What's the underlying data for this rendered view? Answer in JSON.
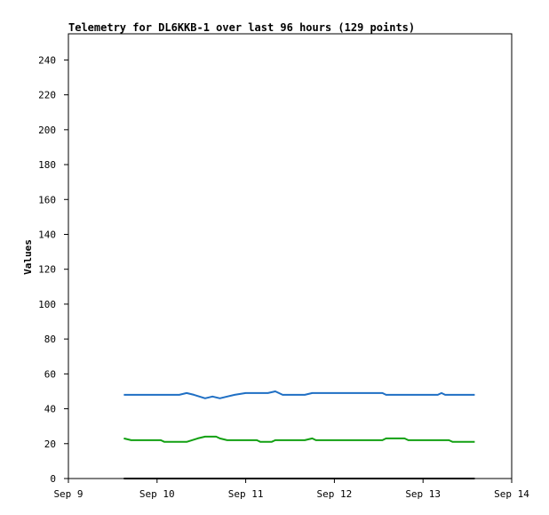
{
  "chart_data": {
    "type": "line",
    "title": "Telemetry for DL6KKB-1 over last 96 hours (129 points)",
    "xlabel": "",
    "ylabel": "Values",
    "x_ticks": [
      "Sep 9",
      "Sep 10",
      "Sep 11",
      "Sep 12",
      "Sep 13",
      "Sep 14"
    ],
    "xlim": [
      "2015-09-09T00:00",
      "2015-09-14T00:00"
    ],
    "y_ticks": [
      0,
      20,
      40,
      60,
      80,
      100,
      120,
      140,
      160,
      180,
      200,
      220,
      240
    ],
    "ylim": [
      0,
      255
    ],
    "grid": false,
    "series": [
      {
        "color": "#1f6fc4",
        "points": [
          [
            "2015-09-09T15:00",
            48
          ],
          [
            "2015-09-10T00:00",
            48
          ],
          [
            "2015-09-10T06:00",
            48
          ],
          [
            "2015-09-10T08:00",
            49
          ],
          [
            "2015-09-10T10:00",
            48
          ],
          [
            "2015-09-10T13:00",
            46
          ],
          [
            "2015-09-10T15:00",
            47
          ],
          [
            "2015-09-10T17:00",
            46
          ],
          [
            "2015-09-10T19:00",
            47
          ],
          [
            "2015-09-10T21:00",
            48
          ],
          [
            "2015-09-11T00:00",
            49
          ],
          [
            "2015-09-11T06:00",
            49
          ],
          [
            "2015-09-11T08:00",
            50
          ],
          [
            "2015-09-11T10:00",
            48
          ],
          [
            "2015-09-11T16:00",
            48
          ],
          [
            "2015-09-11T18:00",
            49
          ],
          [
            "2015-09-12T00:00",
            49
          ],
          [
            "2015-09-12T13:00",
            49
          ],
          [
            "2015-09-12T14:00",
            48
          ],
          [
            "2015-09-13T00:00",
            48
          ],
          [
            "2015-09-13T04:00",
            48
          ],
          [
            "2015-09-13T05:00",
            49
          ],
          [
            "2015-09-13T06:00",
            48
          ],
          [
            "2015-09-13T14:00",
            48
          ]
        ]
      },
      {
        "color": "#12a012",
        "points": [
          [
            "2015-09-09T15:00",
            23
          ],
          [
            "2015-09-09T17:00",
            22
          ],
          [
            "2015-09-10T01:00",
            22
          ],
          [
            "2015-09-10T02:00",
            21
          ],
          [
            "2015-09-10T08:00",
            21
          ],
          [
            "2015-09-10T11:00",
            23
          ],
          [
            "2015-09-10T13:00",
            24
          ],
          [
            "2015-09-10T16:00",
            24
          ],
          [
            "2015-09-10T17:00",
            23
          ],
          [
            "2015-09-10T19:00",
            22
          ],
          [
            "2015-09-11T03:00",
            22
          ],
          [
            "2015-09-11T04:00",
            21
          ],
          [
            "2015-09-11T07:00",
            21
          ],
          [
            "2015-09-11T08:00",
            22
          ],
          [
            "2015-09-11T16:00",
            22
          ],
          [
            "2015-09-11T18:00",
            23
          ],
          [
            "2015-09-11T19:00",
            22
          ],
          [
            "2015-09-12T13:00",
            22
          ],
          [
            "2015-09-12T14:00",
            23
          ],
          [
            "2015-09-12T19:00",
            23
          ],
          [
            "2015-09-12T20:00",
            22
          ],
          [
            "2015-09-13T07:00",
            22
          ],
          [
            "2015-09-13T08:00",
            21
          ],
          [
            "2015-09-13T14:00",
            21
          ]
        ]
      },
      {
        "color": "#000000",
        "points": [
          [
            "2015-09-09T15:00",
            0
          ],
          [
            "2015-09-13T14:00",
            0
          ]
        ]
      }
    ]
  }
}
